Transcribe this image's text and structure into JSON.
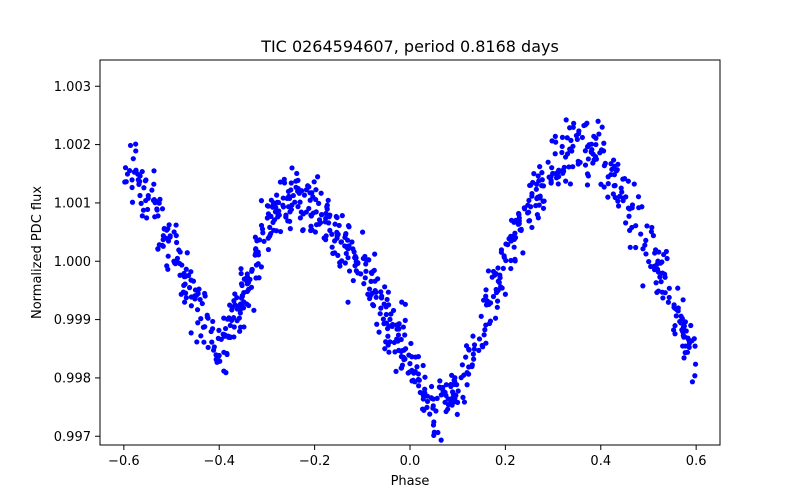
{
  "chart_data": {
    "type": "scatter",
    "title": "TIC 0264594607, period 0.8168 days",
    "xlabel": "Phase",
    "ylabel": "Normalized PDC flux",
    "xlim": [
      -0.65,
      0.65
    ],
    "ylim": [
      0.99685,
      1.00345
    ],
    "xticks": [
      -0.6,
      -0.4,
      -0.2,
      0.0,
      0.2,
      0.4,
      0.6
    ],
    "xtick_labels": [
      "−0.6",
      "−0.4",
      "−0.2",
      "0.0",
      "0.2",
      "0.4",
      "0.6"
    ],
    "yticks": [
      0.997,
      0.998,
      0.999,
      1.0,
      1.001,
      1.002,
      1.003
    ],
    "ytick_labels": [
      "0.997",
      "0.998",
      "0.999",
      "1.000",
      "1.001",
      "1.002",
      "1.003"
    ],
    "marker_color": "#0000ff",
    "grid": false,
    "legend": "none",
    "phase_range": [
      -0.6,
      0.6
    ],
    "trend": {
      "x": [
        -0.6,
        -0.55,
        -0.5,
        -0.45,
        -0.4,
        -0.35,
        -0.3,
        -0.25,
        -0.2,
        -0.15,
        -0.1,
        -0.05,
        0.0,
        0.05,
        0.1,
        0.15,
        0.2,
        0.25,
        0.3,
        0.35,
        0.4,
        0.45,
        0.5,
        0.55,
        0.6
      ],
      "y": [
        1.0018,
        1.0011,
        1.0003,
        0.99935,
        0.99845,
        0.9994,
        1.0006,
        1.00105,
        1.0009,
        1.0003,
        0.99995,
        0.99905,
        0.9983,
        0.99755,
        0.9978,
        0.99875,
        1.00005,
        1.00095,
        1.00155,
        1.00195,
        1.00195,
        1.00105,
        1.0002,
        0.99925,
        0.99835
      ]
    },
    "scatter_amplitude": 0.0003,
    "point_count": 900
  }
}
